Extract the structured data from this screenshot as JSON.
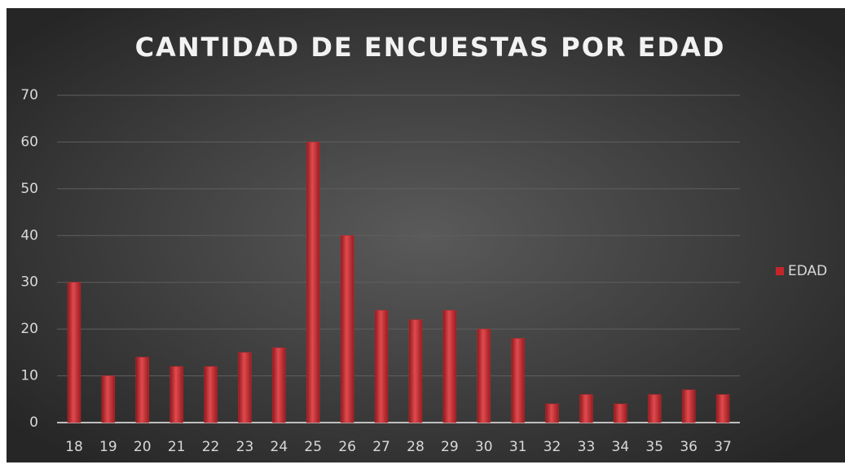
{
  "chart_data": {
    "type": "bar",
    "title": "CANTIDAD DE ENCUESTAS POR EDAD",
    "categories": [
      "18",
      "19",
      "20",
      "21",
      "22",
      "23",
      "24",
      "25",
      "26",
      "27",
      "28",
      "29",
      "30",
      "31",
      "32",
      "33",
      "34",
      "35",
      "36",
      "37"
    ],
    "series": [
      {
        "name": "EDAD",
        "color": "#c4262b",
        "values": [
          30,
          10,
          14,
          12,
          12,
          15,
          16,
          60,
          40,
          24,
          22,
          24,
          20,
          18,
          4,
          6,
          4,
          6,
          7,
          6
        ]
      }
    ],
    "ylim": [
      0,
      70
    ],
    "yticks": [
      0,
      10,
      20,
      30,
      40,
      50,
      60,
      70
    ],
    "grid": true,
    "legend": "right"
  }
}
